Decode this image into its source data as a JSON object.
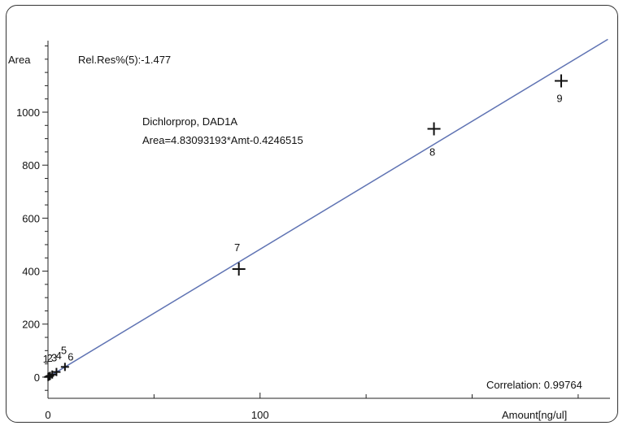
{
  "chart_data": {
    "type": "scatter",
    "title": "Dichlorprop, DAD1A",
    "equation": "Area=4.83093193*Amt-0.4246515",
    "rel_res": "Rel.Res%(5):-1.477",
    "correlation": "Correlation: 0.99764",
    "xlabel": "Amount[ng/ul]",
    "ylabel": "Area",
    "xlim": [
      0,
      265
    ],
    "ylim": [
      -80,
      1270
    ],
    "x_ticks": [
      0,
      100
    ],
    "x_tick_labels": [
      "0",
      "100"
    ],
    "y_ticks": [
      0,
      200,
      400,
      600,
      800,
      1000
    ],
    "y_tick_labels": [
      "0",
      "200",
      "400",
      "600",
      "800",
      "1000"
    ],
    "fit": {
      "slope": 4.83093193,
      "intercept": -0.4246515
    },
    "line_color": "#5f73b3",
    "grid": false,
    "points": [
      {
        "label": "1",
        "x": 0.1,
        "y": 0.5
      },
      {
        "label": "2",
        "x": 0.5,
        "y": 2.4
      },
      {
        "label": "3",
        "x": 1.0,
        "y": 4.8
      },
      {
        "label": "4",
        "x": 2.0,
        "y": 9.7
      },
      {
        "label": "5",
        "x": 4.0,
        "y": 19.5
      },
      {
        "label": "6",
        "x": 8.0,
        "y": 38.5
      },
      {
        "label": "7",
        "x": 90,
        "y": 408
      },
      {
        "label": "8",
        "x": 182,
        "y": 937
      },
      {
        "label": "9",
        "x": 242,
        "y": 1118
      }
    ]
  }
}
